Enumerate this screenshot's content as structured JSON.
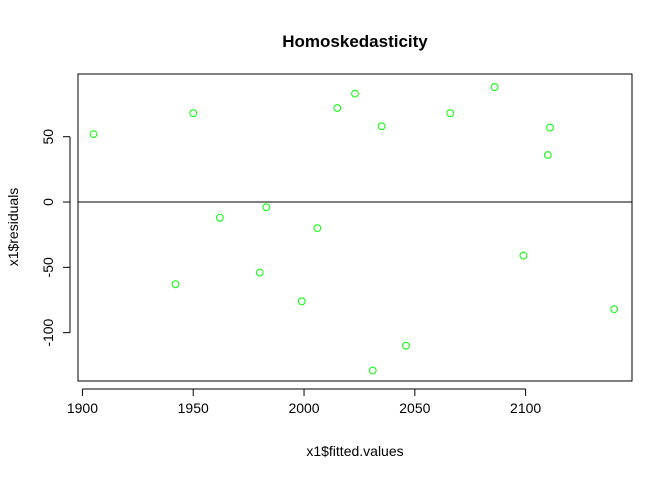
{
  "chart_data": {
    "type": "scatter",
    "title": "Homoskedasticity",
    "xlabel": "x1$fitted.values",
    "ylabel": "x1$residuals",
    "xlim": [
      1898,
      2148
    ],
    "ylim": [
      -137,
      98
    ],
    "xticks": [
      1900,
      1950,
      2000,
      2050,
      2100
    ],
    "yticks": [
      -100,
      -50,
      0,
      50
    ],
    "xtick_labels": [
      "1900",
      "1950",
      "2000",
      "2050",
      "2100"
    ],
    "ytick_labels": [
      "-100",
      "-50",
      "0",
      "50"
    ],
    "hline": 0,
    "grid": false,
    "point_color": "#00ff00",
    "line_color": "#000000",
    "points": [
      {
        "x": 1905,
        "y": 52
      },
      {
        "x": 1942,
        "y": -63
      },
      {
        "x": 1950,
        "y": 68
      },
      {
        "x": 1962,
        "y": -12
      },
      {
        "x": 1980,
        "y": -54
      },
      {
        "x": 1983,
        "y": -4
      },
      {
        "x": 1999,
        "y": -76
      },
      {
        "x": 2006,
        "y": -20
      },
      {
        "x": 2015,
        "y": 72
      },
      {
        "x": 2023,
        "y": 83
      },
      {
        "x": 2031,
        "y": -129
      },
      {
        "x": 2035,
        "y": 58
      },
      {
        "x": 2046,
        "y": -110
      },
      {
        "x": 2066,
        "y": 68
      },
      {
        "x": 2086,
        "y": 88
      },
      {
        "x": 2099,
        "y": -41
      },
      {
        "x": 2110,
        "y": 36
      },
      {
        "x": 2111,
        "y": 57
      },
      {
        "x": 2140,
        "y": -82
      }
    ]
  }
}
